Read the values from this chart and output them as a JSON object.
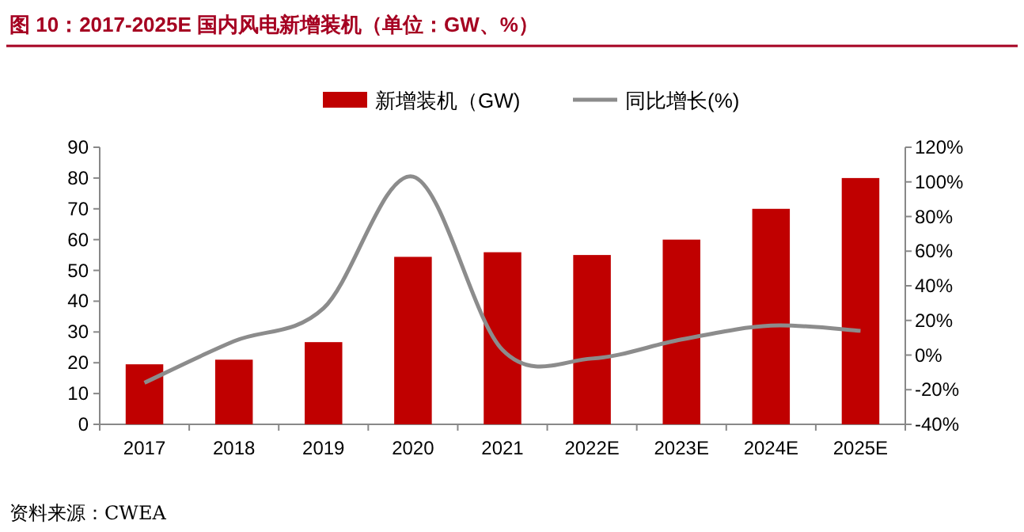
{
  "chart_data": {
    "type": "bar",
    "title": "图 10：2017-2025E 国内风电新增装机（单位：GW、%）",
    "categories": [
      "2017",
      "2018",
      "2019",
      "2020",
      "2021",
      "2022E",
      "2023E",
      "2024E",
      "2025E"
    ],
    "series": [
      {
        "name": "新增装机（GW)",
        "color": "#c00000",
        "values": [
          19.5,
          21,
          26.7,
          54.4,
          55.9,
          55,
          60,
          70,
          80
        ]
      },
      {
        "name": "同比增长(%)",
        "type": "line",
        "axis": "y2",
        "color": "#8c8c8c",
        "values": [
          -16,
          8,
          27,
          103,
          3,
          -2,
          9,
          17,
          14
        ]
      }
    ],
    "ylim": [
      0,
      90
    ],
    "yticks": [
      0,
      10,
      20,
      30,
      40,
      50,
      60,
      70,
      80,
      90
    ],
    "y2lim": [
      -40,
      120
    ],
    "y2ticks": [
      {
        "value": -40,
        "label": "-40%"
      },
      {
        "value": -20,
        "label": "-20%"
      },
      {
        "value": 0,
        "label": "0%"
      },
      {
        "value": 20,
        "label": "20%"
      },
      {
        "value": 40,
        "label": "40%"
      },
      {
        "value": 60,
        "label": "60%"
      },
      {
        "value": 80,
        "label": "80%"
      },
      {
        "value": 100,
        "label": "100%"
      },
      {
        "value": 120,
        "label": "120%"
      }
    ],
    "legend": "top",
    "grid": false,
    "annotations": [
      "资料来源：CWEA"
    ]
  }
}
